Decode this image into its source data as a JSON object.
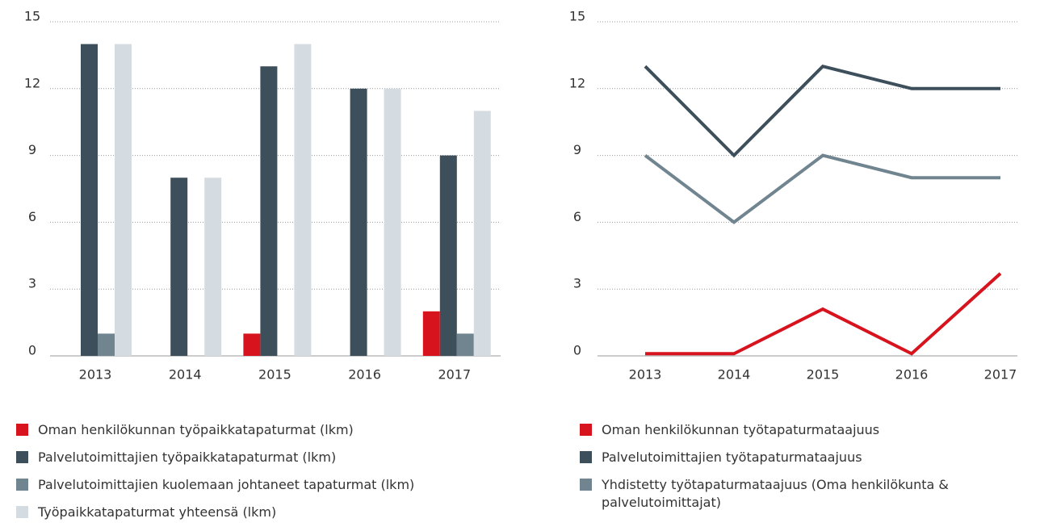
{
  "chart_data": [
    {
      "type": "bar",
      "categories": [
        "2013",
        "2014",
        "2015",
        "2016",
        "2017"
      ],
      "ylim": [
        0,
        15
      ],
      "yticks": [
        0,
        3,
        6,
        9,
        12,
        15
      ],
      "grid": true,
      "series": [
        {
          "name": "Oman henkilökunnan työpaikkatapaturmat (lkm)",
          "color": "#d7131e",
          "values": [
            0,
            0,
            1,
            0,
            2
          ]
        },
        {
          "name": "Palvelutoimittajien työpaikkatapaturmat (lkm)",
          "color": "#3d4f5a",
          "values": [
            14,
            8,
            13,
            12,
            9
          ]
        },
        {
          "name": "Palvelutoimittajien kuolemaan johtaneet tapaturmat (lkm)",
          "color": "#708590",
          "values": [
            1,
            0,
            0,
            0,
            1
          ]
        },
        {
          "name": "Työpaikkatapaturmat yhteensä (lkm)",
          "color": "#d5dce1",
          "values": [
            14,
            8,
            14,
            12,
            11
          ]
        }
      ]
    },
    {
      "type": "line",
      "categories": [
        "2013",
        "2014",
        "2015",
        "2016",
        "2017"
      ],
      "ylim": [
        0,
        15
      ],
      "yticks": [
        0,
        3,
        6,
        9,
        12,
        15
      ],
      "grid": true,
      "series": [
        {
          "name": "Oman henkilökunnan työtapaturmataajuus",
          "color": "#d7131e",
          "values": [
            0.1,
            0.1,
            2.1,
            0.1,
            3.7
          ]
        },
        {
          "name": "Palvelutoimittajien työtapaturmataajuus",
          "color": "#3d4f5a",
          "values": [
            13,
            9,
            13,
            12,
            12
          ]
        },
        {
          "name": "Yhdistetty työtapaturmataajuus (Oma henkilökunta & palvelutoimittajat)",
          "color": "#708590",
          "values": [
            9,
            6,
            9,
            8,
            8
          ]
        }
      ]
    }
  ]
}
